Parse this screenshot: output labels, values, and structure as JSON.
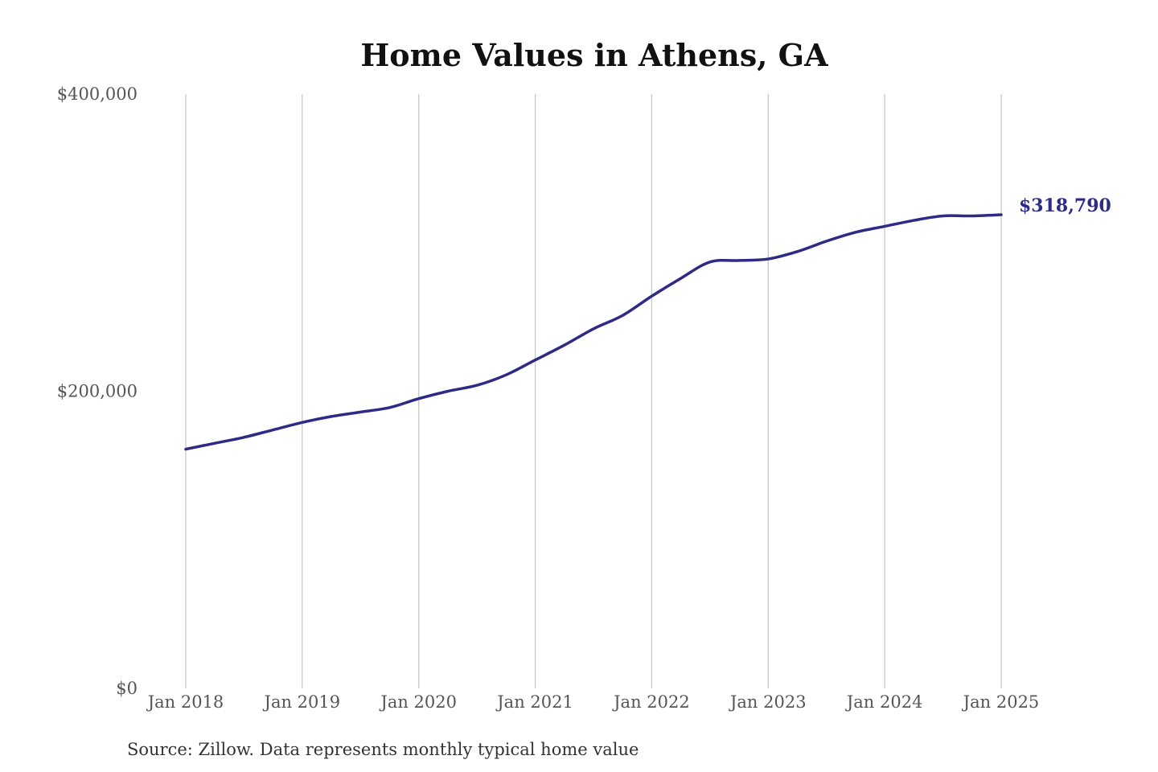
{
  "chart_data": {
    "type": "line",
    "title": "Home Values in Athens, GA",
    "xlabel": "",
    "ylabel": "",
    "x_tick_labels": [
      "Jan 2018",
      "Jan 2019",
      "Jan 2020",
      "Jan 2021",
      "Jan 2022",
      "Jan 2023",
      "Jan 2024",
      "Jan 2025"
    ],
    "y_tick_labels": [
      "$0",
      "$200,000",
      "$400,000"
    ],
    "y_ticks": [
      0,
      200000,
      400000
    ],
    "ylim": [
      0,
      400000
    ],
    "xlim": [
      "2018-01",
      "2025-01"
    ],
    "grid": "vertical",
    "line_color": "#2e2a85",
    "end_label": "$318,790",
    "x": [
      "2018-01",
      "2018-04",
      "2018-07",
      "2018-10",
      "2019-01",
      "2019-04",
      "2019-07",
      "2019-10",
      "2020-01",
      "2020-04",
      "2020-07",
      "2020-10",
      "2021-01",
      "2021-04",
      "2021-07",
      "2021-10",
      "2022-01",
      "2022-04",
      "2022-07",
      "2022-10",
      "2023-01",
      "2023-04",
      "2023-07",
      "2023-10",
      "2024-01",
      "2024-04",
      "2024-07",
      "2024-10",
      "2025-01"
    ],
    "values": [
      161000,
      165000,
      169000,
      174000,
      179000,
      183000,
      186000,
      189000,
      195000,
      200000,
      204000,
      211000,
      221000,
      231000,
      242000,
      251000,
      264000,
      276000,
      287000,
      288000,
      289000,
      294000,
      301000,
      307000,
      311000,
      315000,
      318000,
      318000,
      318790
    ]
  },
  "source_note": "Source: Zillow. Data represents monthly typical home value"
}
